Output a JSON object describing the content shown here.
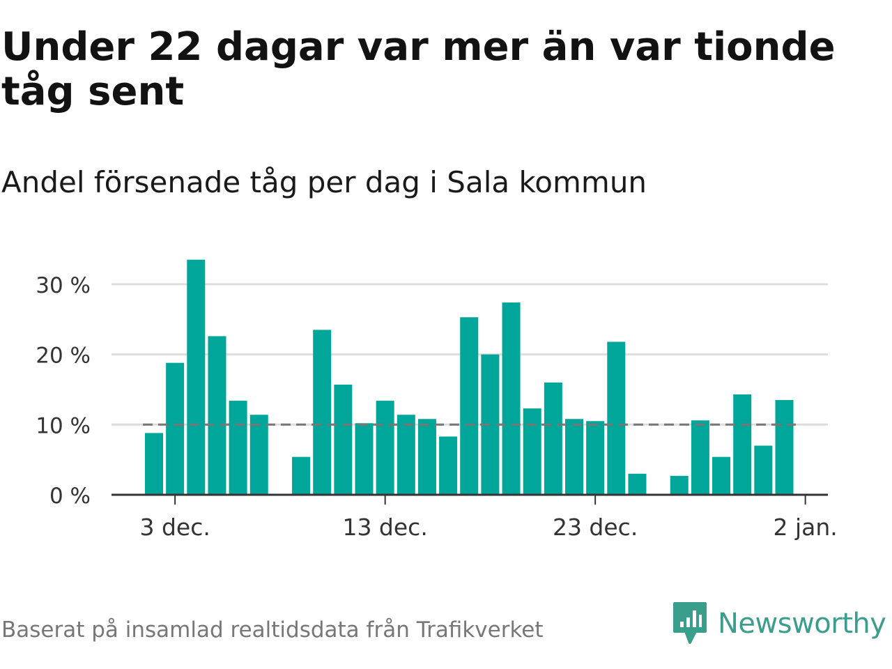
{
  "header": {
    "title": "Under 22 dagar var mer än var tionde tåg sent",
    "subtitle": "Andel försenade tåg per dag i Sala kommun"
  },
  "footer": {
    "source": "Baserat på insamlad realtidsdata från Trafikverket",
    "brand": "Newsworthy"
  },
  "colors": {
    "bar": "#00a69a",
    "reference_line": "#777777",
    "grid": "#dddddd",
    "axis": "#333333",
    "brand": "#3a9e8d"
  },
  "icons": {
    "brand": "chat-bubble-bar-chart-icon"
  },
  "chart_data": {
    "type": "bar",
    "title": "",
    "xlabel": "",
    "ylabel": "",
    "unit": "%",
    "x": [
      "2 dec.",
      "3 dec.",
      "4 dec.",
      "5 dec.",
      "6 dec.",
      "7 dec.",
      "8 dec.",
      "9 dec.",
      "10 dec.",
      "11 dec.",
      "12 dec.",
      "13 dec.",
      "14 dec.",
      "15 dec.",
      "16 dec.",
      "17 dec.",
      "18 dec.",
      "19 dec.",
      "20 dec.",
      "21 dec.",
      "22 dec.",
      "23 dec.",
      "24 dec.",
      "25 dec.",
      "26 dec.",
      "27 dec.",
      "28 dec.",
      "29 dec.",
      "30 dec.",
      "31 dec.",
      "1 jan."
    ],
    "values": [
      8.8,
      18.8,
      33.5,
      22.6,
      13.4,
      11.4,
      null,
      5.4,
      23.5,
      15.7,
      10.2,
      13.4,
      11.4,
      10.8,
      8.3,
      25.3,
      20.0,
      27.4,
      12.3,
      16.0,
      10.8,
      10.5,
      21.8,
      3.0,
      null,
      2.7,
      10.6,
      5.4,
      14.3,
      7.0,
      13.5
    ],
    "reference_line": 10,
    "ylim": [
      0,
      35
    ],
    "yticks": [
      0,
      10,
      20,
      30
    ],
    "ytick_labels": [
      "0 %",
      "10 %",
      "20 %",
      "30 %"
    ],
    "xtick_labels": [
      "3 dec.",
      "13 dec.",
      "23 dec.",
      "2 jan."
    ],
    "xtick_index": [
      1,
      11,
      21,
      31
    ],
    "grid": true,
    "legend": "none"
  }
}
